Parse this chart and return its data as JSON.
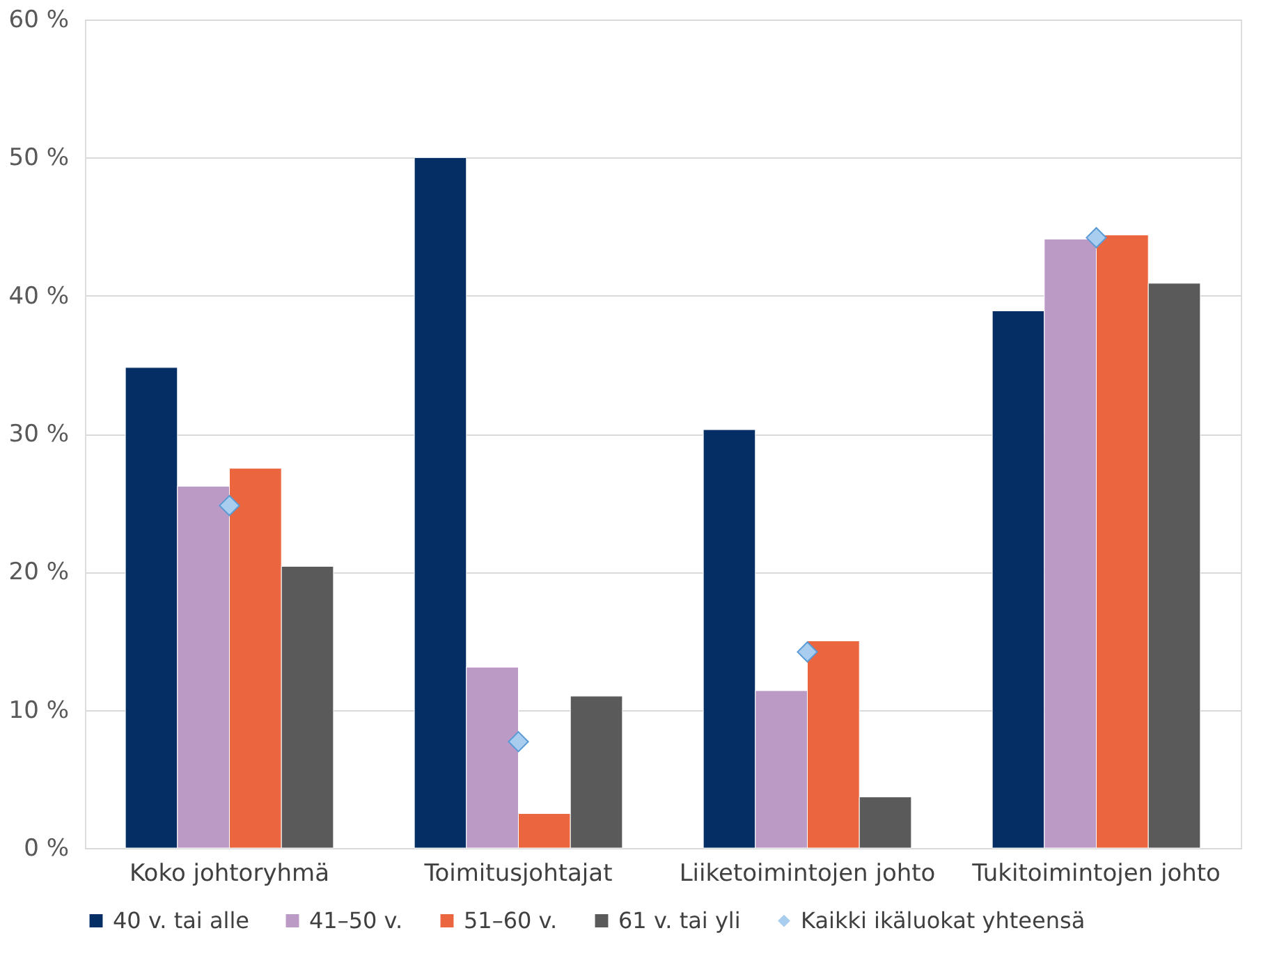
{
  "chart_data": {
    "type": "bar",
    "categories": [
      "Koko johtoryhmä",
      "Toimitusjohtajat",
      "Liiketoimintojen johto",
      "Tukitoimintojen johto"
    ],
    "series": [
      {
        "name": "40 v. tai alle",
        "color": "#052e65",
        "values": [
          34.8,
          50.0,
          30.3,
          38.9
        ]
      },
      {
        "name": "41–50 v.",
        "color": "#bc9ac6",
        "values": [
          26.2,
          13.1,
          11.4,
          44.1
        ]
      },
      {
        "name": "51–60 v.",
        "color": "#eb653e",
        "values": [
          27.5,
          2.5,
          15.0,
          44.4
        ]
      },
      {
        "name": "61 v. tai yli",
        "color": "#5a5a5a",
        "values": [
          20.4,
          11.0,
          3.7,
          40.9
        ]
      },
      {
        "name": "Kaikki ikäluokat yhteensä",
        "color": "#a9cdef",
        "type": "scatter",
        "marker": "diamond",
        "values": [
          24.8,
          7.7,
          14.2,
          44.2
        ]
      }
    ],
    "ylim": [
      0,
      60
    ],
    "yticks": [
      {
        "value": 0,
        "label": "0 %"
      },
      {
        "value": 10,
        "label": "10 %"
      },
      {
        "value": 20,
        "label": "20 %"
      },
      {
        "value": 30,
        "label": "30 %"
      },
      {
        "value": 40,
        "label": "40 %"
      },
      {
        "value": 50,
        "label": "50 %"
      },
      {
        "value": 60,
        "label": "60 %"
      }
    ],
    "grid": "y",
    "legend": "bottom"
  }
}
